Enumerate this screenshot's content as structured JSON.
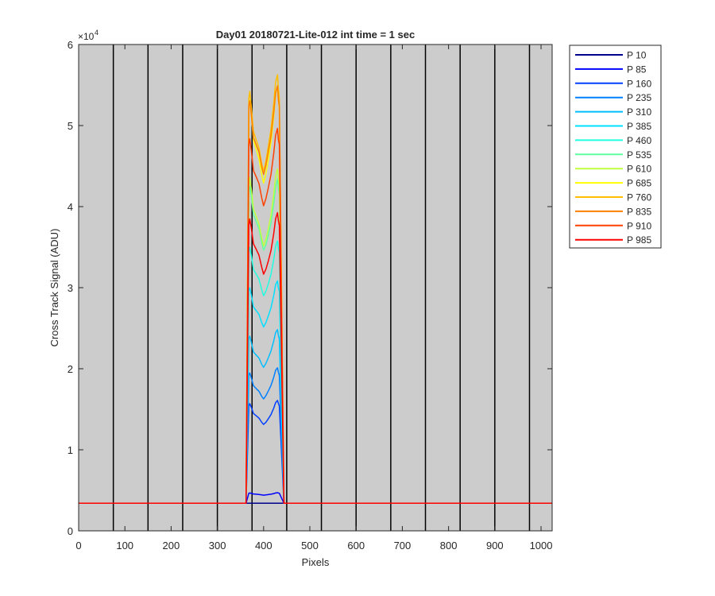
{
  "chart_data": {
    "type": "line",
    "title": "Day01 20180721-Lite-012 int time = 1 sec",
    "xlabel": "Pixels",
    "ylabel": "Cross Track Signal (ADU)",
    "y_multiplier_label": "×10",
    "y_multiplier_exponent": "4",
    "xlim": [
      0,
      1024
    ],
    "ylim": [
      0,
      60000
    ],
    "x_ticks": [
      0,
      100,
      200,
      300,
      400,
      500,
      600,
      700,
      800,
      900,
      1000
    ],
    "y_ticks": [
      0,
      1,
      2,
      3,
      4,
      5,
      6
    ],
    "y_tick_scale": 10000,
    "axes_background": "#cccccc",
    "vertical_lines_x": [
      75,
      150,
      225,
      300,
      375,
      450,
      525,
      600,
      675,
      750,
      825,
      900,
      975
    ],
    "baseline": 3400,
    "profile": {
      "x_start": 368,
      "x_end": 434,
      "rise_start": 362,
      "fall_end": 444,
      "x": [
        368,
        370,
        374,
        378,
        384,
        390,
        396,
        400,
        405,
        410,
        416,
        422,
        426,
        430,
        432,
        434
      ],
      "shape": [
        0.95,
        0.97,
        0.93,
        0.88,
        0.86,
        0.84,
        0.8,
        0.78,
        0.8,
        0.83,
        0.87,
        0.93,
        0.98,
        1.0,
        0.97,
        0.95
      ]
    },
    "legend_position": "outside-right",
    "series": [
      {
        "name": "P 10",
        "color": "#00008f",
        "peak": 3400
      },
      {
        "name": "P 85",
        "color": "#0000ff",
        "peak": 4700
      },
      {
        "name": "P 160",
        "color": "#0040ff",
        "peak": 16000
      },
      {
        "name": "P 235",
        "color": "#0080ff",
        "peak": 20000
      },
      {
        "name": "P 310",
        "color": "#00bfff",
        "peak": 24800
      },
      {
        "name": "P 385",
        "color": "#00e0ff",
        "peak": 31000
      },
      {
        "name": "P 460",
        "color": "#20ffdf",
        "peak": 36000
      },
      {
        "name": "P 535",
        "color": "#60ff9f",
        "peak": 43500
      },
      {
        "name": "P 610",
        "color": "#bfff40",
        "peak": 44500
      },
      {
        "name": "P 685",
        "color": "#ffff00",
        "peak": 54500
      },
      {
        "name": "P 760",
        "color": "#ffbf00",
        "peak": 56000
      },
      {
        "name": "P 835",
        "color": "#ff7f00",
        "peak": 55000
      },
      {
        "name": "P 910",
        "color": "#ff4000",
        "peak": 50000
      },
      {
        "name": "P 985",
        "color": "#ff0000",
        "peak": 39500
      }
    ]
  }
}
